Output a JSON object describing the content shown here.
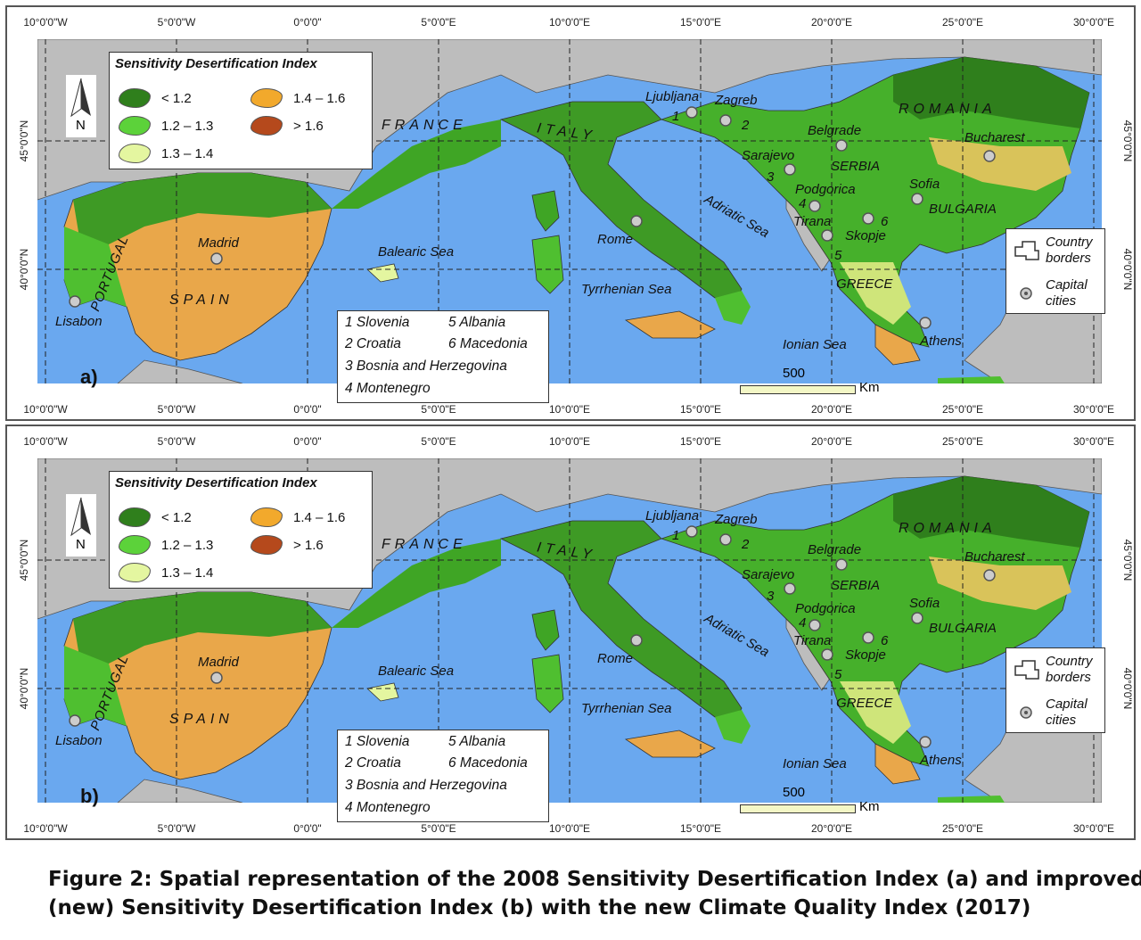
{
  "x_ticks": [
    "10°0'0\"W",
    "5°0'0\"W",
    "0°0'0\"",
    "5°0'0\"E",
    "10°0'0\"E",
    "15°0'0\"E",
    "20°0'0\"E",
    "25°0'0\"E",
    "30°0'0\"E"
  ],
  "y_ticks": [
    "45°0'0\"N",
    "40°0'0\"N"
  ],
  "legend": {
    "title": "Sensitivity Desertification Index",
    "classes": [
      {
        "label": "< 1.2",
        "color": "#2f7f1c"
      },
      {
        "label": "1.2 – 1.3",
        "color": "#5cd23a"
      },
      {
        "label": "1.3 – 1.4",
        "color": "#e4f6a0"
      },
      {
        "label": "1.4 – 1.6",
        "color": "#f2a92c"
      },
      {
        "label": "> 1.6",
        "color": "#b5491c"
      }
    ]
  },
  "north": "N",
  "countries_key": [
    "1 Slovenia",
    "2 Croatia",
    "3 Bosnia and Herzegovina",
    "4 Montenegro",
    "5 Albania",
    "6 Macedonia"
  ],
  "map_key": {
    "borders": "Country borders",
    "borders_line1": "Country",
    "borders_line2": "borders",
    "capitals_line1": "Capital",
    "capitals_line2": "cities"
  },
  "place_labels": {
    "france": "FRANCE",
    "italy": "ITALY",
    "spain": "SPAIN",
    "portugal": "PORTUGAL",
    "romania": "ROMANIA",
    "serbia": "SERBIA",
    "bulgaria": "BULGARIA",
    "greece": "GREECE",
    "balearic": "Balearic Sea",
    "tyrrhenian": "Tyrrhenian Sea",
    "adriatic": "Adriatic Sea",
    "ionian": "Ionian Sea",
    "madrid": "Madrid",
    "lisabon": "Lisabon",
    "rome": "Rome",
    "ljubljana": "Ljubljana",
    "zagreb": "Zagreb",
    "belgrade": "Belgrade",
    "sarajevo": "Sarajevo",
    "podgorica": "Podgorica",
    "tirana": "Tirana",
    "skopje": "Skopje",
    "sofia": "Sofia",
    "bucharest": "Bucharest",
    "athens": "Athens",
    "n1": "1",
    "n2": "2",
    "n3": "3",
    "n4": "4",
    "n5": "5",
    "n6": "6"
  },
  "scale": {
    "value": "500",
    "unit": "Km"
  },
  "panels": [
    {
      "letter": "a)"
    },
    {
      "letter": "b)"
    }
  ],
  "colors": {
    "sea": "#6aa8ef",
    "land_outside": "#bdbdbd"
  },
  "caption": {
    "line1": "Figure 2: Spatial representation of the 2008 Sensitivity Desertification Index (a) and improved",
    "line2": "(new) Sensitivity Desertification Index (b) with the new Climate Quality Index (2017)"
  }
}
